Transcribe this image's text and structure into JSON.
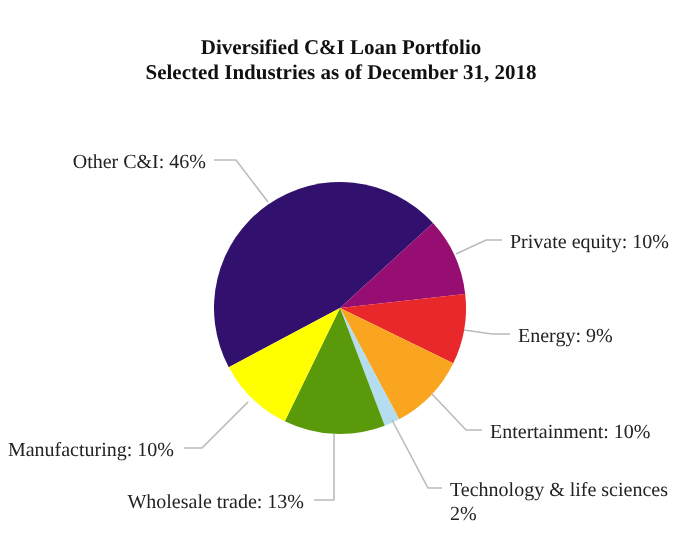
{
  "chart_data": {
    "type": "pie",
    "title": "Diversified C&I Loan Portfolio\nSelected Industries as of December 31, 2018",
    "categories": [
      "Other C&I: 46%",
      "Private equity: 10%",
      "Energy: 9%",
      "Entertainment: 10%",
      "Technology & life sciences 2%",
      "Wholesale trade: 13%",
      "Manufacturing: 10%"
    ],
    "values": [
      46,
      10,
      9,
      10,
      2,
      13,
      10
    ],
    "colors": [
      "#32106e",
      "#970e73",
      "#e8282a",
      "#f9a51f",
      "#b4def0",
      "#5a9a0a",
      "#ffff00"
    ]
  }
}
